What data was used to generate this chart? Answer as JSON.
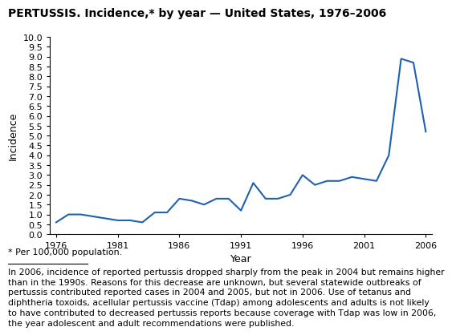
{
  "title": "PERTUSSIS. Incidence,* by year — United States, 1976–2006",
  "xlabel": "Year",
  "ylabel": "Incidence",
  "years": [
    1976,
    1977,
    1978,
    1979,
    1980,
    1981,
    1982,
    1983,
    1984,
    1985,
    1986,
    1987,
    1988,
    1989,
    1990,
    1991,
    1992,
    1993,
    1994,
    1995,
    1996,
    1997,
    1998,
    1999,
    2000,
    2001,
    2002,
    2003,
    2004,
    2005,
    2006
  ],
  "values": [
    0.6,
    1.0,
    1.0,
    0.9,
    0.8,
    0.7,
    0.7,
    0.6,
    1.1,
    1.1,
    1.8,
    1.7,
    1.5,
    1.8,
    1.8,
    1.2,
    2.6,
    1.8,
    1.8,
    2.0,
    3.0,
    2.5,
    2.7,
    2.7,
    2.9,
    2.8,
    2.7,
    4.0,
    8.9,
    8.7,
    5.2
  ],
  "line_color": "#2060b0",
  "line_width": 1.5,
  "ylim": [
    0,
    10.0
  ],
  "yticks": [
    0,
    0.5,
    1.0,
    1.5,
    2.0,
    2.5,
    3.0,
    3.5,
    4.0,
    4.5,
    5.0,
    5.5,
    6.0,
    6.5,
    7.0,
    7.5,
    8.0,
    8.5,
    9.0,
    9.5,
    10.0
  ],
  "xticks": [
    1976,
    1981,
    1986,
    1991,
    1996,
    2001,
    2006
  ],
  "xlim": [
    1975.5,
    2006.5
  ],
  "footnote_star": "* Per 100,000 population.",
  "footnote_text": "In 2006, incidence of reported pertussis dropped sharply from the peak in 2004 but remains higher\nthan in the 1990s. Reasons for this decrease are unknown, but several statewide outbreaks of\npertussis contributed reported cases in 2004 and 2005, but not in 2006. Use of tetanus and\ndiphtheria toxoids, acellular pertussis vaccine (Tdap) among adolescents and adults is not likely\nto have contributed to decreased pertussis reports because coverage with Tdap was low in 2006,\nthe year adolescent and adult recommendations were published.",
  "bg_color": "#ffffff",
  "title_fontsize": 10,
  "axis_label_fontsize": 9,
  "tick_fontsize": 8,
  "footnote_star_fontsize": 8,
  "footnote_text_fontsize": 7.8
}
